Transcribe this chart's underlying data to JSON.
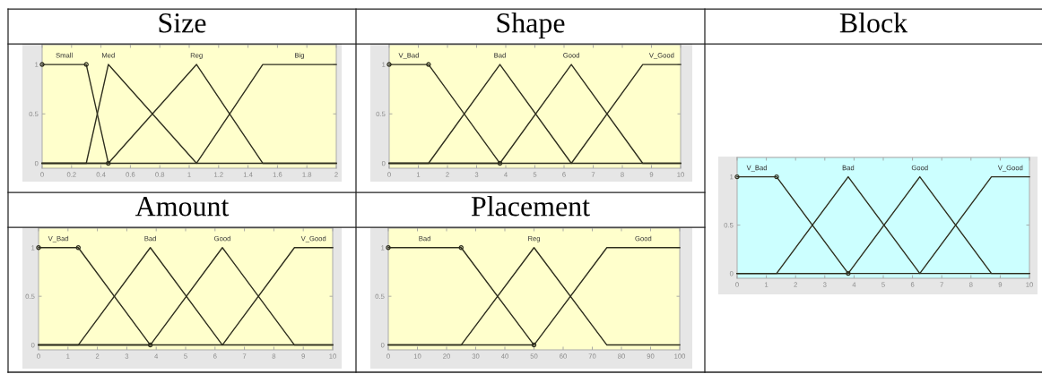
{
  "chart_data": [
    {
      "type": "line",
      "title": "Size",
      "xlim": [
        0,
        2
      ],
      "xticks": [
        0,
        0.2,
        0.4,
        0.6,
        0.8,
        1,
        1.2,
        1.4,
        1.6,
        1.8,
        2
      ],
      "ylim": [
        -0.05,
        1.2
      ],
      "yticks": [
        0,
        0.5,
        1
      ],
      "grid": false,
      "legend": false,
      "series": [
        {
          "name": "Small",
          "color": "#2e2e1e",
          "marker": "circle",
          "x": [
            0,
            0.3,
            0.45
          ],
          "values": [
            1,
            1,
            0
          ]
        },
        {
          "name": "Med",
          "color": "#2e2e1e",
          "x": [
            0,
            0.3,
            0.45,
            1.05,
            2
          ],
          "values": [
            0,
            0,
            1,
            0,
            0
          ]
        },
        {
          "name": "Reg",
          "color": "#2e2e1e",
          "x": [
            0,
            0.45,
            1.05,
            1.5,
            2
          ],
          "values": [
            0,
            0,
            1,
            0,
            0
          ]
        },
        {
          "name": "Big",
          "color": "#2e2e1e",
          "x": [
            0,
            1.05,
            1.5,
            2
          ],
          "values": [
            0,
            0,
            1,
            1
          ]
        }
      ]
    },
    {
      "type": "line",
      "title": "Shape",
      "xlim": [
        0,
        10
      ],
      "xticks": [
        0,
        1,
        2,
        3,
        4,
        5,
        6,
        7,
        8,
        9,
        10
      ],
      "ylim": [
        -0.05,
        1.2
      ],
      "yticks": [
        0,
        0.5,
        1
      ],
      "grid": false,
      "legend": false,
      "series": [
        {
          "name": "V_Bad",
          "color": "#2e2e1e",
          "marker": "circle",
          "x": [
            0,
            1.35,
            3.8
          ],
          "values": [
            1,
            1,
            0
          ]
        },
        {
          "name": "Bad",
          "color": "#2e2e1e",
          "x": [
            0,
            1.35,
            3.8,
            6.25,
            10
          ],
          "values": [
            0,
            0,
            1,
            0,
            0
          ]
        },
        {
          "name": "Good",
          "color": "#2e2e1e",
          "x": [
            0,
            3.8,
            6.25,
            8.7,
            10
          ],
          "values": [
            0,
            0,
            1,
            0,
            0
          ]
        },
        {
          "name": "V_Good",
          "color": "#2e2e1e",
          "x": [
            0,
            6.25,
            8.7,
            10
          ],
          "values": [
            0,
            0,
            1,
            1
          ]
        }
      ]
    },
    {
      "type": "line",
      "title": "Block",
      "xlim": [
        0,
        10
      ],
      "xticks": [
        0,
        1,
        2,
        3,
        4,
        5,
        6,
        7,
        8,
        9,
        10
      ],
      "ylim": [
        -0.05,
        1.2
      ],
      "yticks": [
        0,
        0.5,
        1
      ],
      "grid": false,
      "legend": false,
      "series": [
        {
          "name": "V_Bad",
          "color": "#2e2e1e",
          "marker": "circle",
          "x": [
            0,
            1.35,
            3.8
          ],
          "values": [
            1,
            1,
            0
          ]
        },
        {
          "name": "Bad",
          "color": "#2e2e1e",
          "x": [
            0,
            1.35,
            3.8,
            6.25,
            10
          ],
          "values": [
            0,
            0,
            1,
            0,
            0
          ]
        },
        {
          "name": "Good",
          "color": "#2e2e1e",
          "x": [
            0,
            3.8,
            6.25,
            8.7,
            10
          ],
          "values": [
            0,
            0,
            1,
            0,
            0
          ]
        },
        {
          "name": "V_Good",
          "color": "#2e2e1e",
          "x": [
            0,
            6.25,
            8.7,
            10
          ],
          "values": [
            0,
            0,
            1,
            1
          ]
        }
      ]
    },
    {
      "type": "line",
      "title": "Amount",
      "xlim": [
        0,
        10
      ],
      "xticks": [
        0,
        1,
        2,
        3,
        4,
        5,
        6,
        7,
        8,
        9,
        10
      ],
      "ylim": [
        -0.05,
        1.2
      ],
      "yticks": [
        0,
        0.5,
        1
      ],
      "grid": false,
      "legend": false,
      "series": [
        {
          "name": "V_Bad",
          "color": "#2e2e1e",
          "marker": "circle",
          "x": [
            0,
            1.35,
            3.8
          ],
          "values": [
            1,
            1,
            0
          ]
        },
        {
          "name": "Bad",
          "color": "#2e2e1e",
          "x": [
            0,
            1.35,
            3.8,
            6.25,
            10
          ],
          "values": [
            0,
            0,
            1,
            0,
            0
          ]
        },
        {
          "name": "Good",
          "color": "#2e2e1e",
          "x": [
            0,
            3.8,
            6.25,
            8.7,
            10
          ],
          "values": [
            0,
            0,
            1,
            0,
            0
          ]
        },
        {
          "name": "V_Good",
          "color": "#2e2e1e",
          "x": [
            0,
            6.25,
            8.7,
            10
          ],
          "values": [
            0,
            0,
            1,
            1
          ]
        }
      ]
    },
    {
      "type": "line",
      "title": "Placement",
      "xlim": [
        0,
        100
      ],
      "xticks": [
        0,
        10,
        20,
        30,
        40,
        50,
        60,
        70,
        80,
        90,
        100
      ],
      "ylim": [
        -0.05,
        1.2
      ],
      "yticks": [
        0,
        0.5,
        1
      ],
      "grid": false,
      "legend": false,
      "series": [
        {
          "name": "Bad",
          "color": "#2e2e1e",
          "marker": "circle",
          "x": [
            0,
            25,
            50
          ],
          "values": [
            1,
            1,
            0
          ]
        },
        {
          "name": "Reg",
          "color": "#2e2e1e",
          "x": [
            0,
            25,
            50,
            75,
            100
          ],
          "values": [
            0,
            0,
            1,
            0,
            0
          ]
        },
        {
          "name": "Good",
          "color": "#2e2e1e",
          "x": [
            0,
            50,
            75,
            100
          ],
          "values": [
            0,
            0,
            1,
            1
          ]
        }
      ]
    }
  ]
}
